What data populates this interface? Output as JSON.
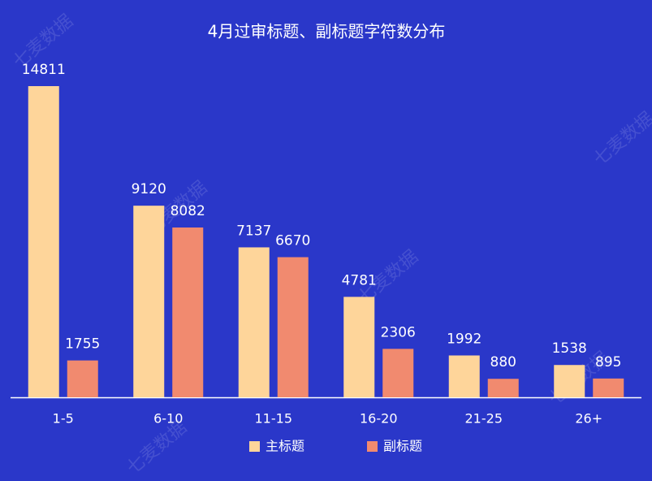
{
  "chart_data": {
    "type": "bar",
    "title": "4月过审标题、副标题字符数分布",
    "categories": [
      "1-5",
      "6-10",
      "11-15",
      "16-20",
      "21-25",
      "26+"
    ],
    "series": [
      {
        "name": "主标题",
        "color": "#fed59a",
        "values": [
          14811,
          9120,
          7137,
          4781,
          1992,
          1538
        ]
      },
      {
        "name": "副标题",
        "color": "#f18a6f",
        "values": [
          1755,
          8082,
          6670,
          2306,
          880,
          895
        ]
      }
    ],
    "watermark": "七麦数据"
  }
}
